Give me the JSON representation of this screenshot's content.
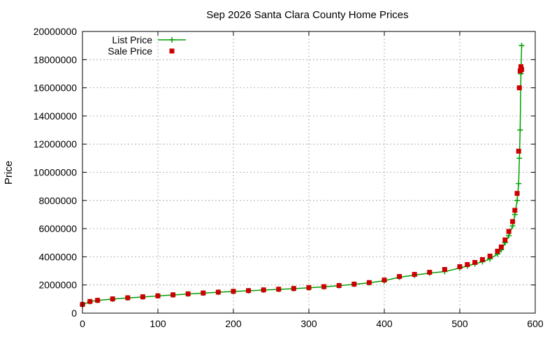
{
  "chart_data": {
    "type": "line",
    "title": "Sep 2026 Santa Clara County Home Prices",
    "xlabel": "",
    "ylabel": "Price",
    "xlim": [
      0,
      600
    ],
    "ylim": [
      0,
      20000000
    ],
    "xticks": [
      0,
      100,
      200,
      300,
      400,
      500,
      600
    ],
    "yticks": [
      0,
      2000000,
      4000000,
      6000000,
      8000000,
      10000000,
      12000000,
      14000000,
      16000000,
      18000000,
      20000000
    ],
    "grid": true,
    "legend": {
      "placement": "top-left"
    },
    "series": [
      {
        "name": "List Price",
        "style": "linespoints",
        "marker": "plus",
        "color": "#00a000",
        "x": [
          0,
          10,
          20,
          40,
          60,
          80,
          100,
          120,
          140,
          160,
          180,
          200,
          220,
          240,
          260,
          280,
          300,
          320,
          340,
          360,
          380,
          400,
          420,
          440,
          460,
          480,
          500,
          510,
          520,
          530,
          540,
          550,
          555,
          560,
          565,
          570,
          573,
          576,
          578,
          579,
          580,
          581,
          582
        ],
        "y": [
          600000,
          820000,
          900000,
          1000000,
          1080000,
          1150000,
          1220000,
          1290000,
          1360000,
          1420000,
          1480000,
          1540000,
          1590000,
          1640000,
          1690000,
          1740000,
          1800000,
          1870000,
          1950000,
          2050000,
          2150000,
          2300000,
          2550000,
          2700000,
          2850000,
          2950000,
          3200000,
          3350000,
          3500000,
          3650000,
          3850000,
          4200000,
          4500000,
          5000000,
          5500000,
          6200000,
          7000000,
          8000000,
          9200000,
          11000000,
          13000000,
          17000000,
          19000000
        ]
      },
      {
        "name": "Sale Price",
        "style": "points",
        "marker": "square",
        "color": "#cc0000",
        "x": [
          0,
          10,
          20,
          40,
          60,
          80,
          100,
          120,
          140,
          160,
          180,
          200,
          220,
          240,
          260,
          280,
          300,
          320,
          340,
          360,
          380,
          400,
          420,
          440,
          460,
          480,
          500,
          510,
          520,
          530,
          540,
          550,
          555,
          560,
          565,
          570,
          573,
          576,
          578,
          579,
          580,
          581,
          582
        ],
        "y": [
          620000,
          830000,
          910000,
          1010000,
          1090000,
          1160000,
          1230000,
          1300000,
          1370000,
          1430000,
          1490000,
          1550000,
          1600000,
          1650000,
          1700000,
          1750000,
          1810000,
          1880000,
          1960000,
          2060000,
          2170000,
          2350000,
          2600000,
          2750000,
          2900000,
          3100000,
          3300000,
          3450000,
          3600000,
          3800000,
          4050000,
          4400000,
          4700000,
          5200000,
          5800000,
          6500000,
          7300000,
          8500000,
          11500000,
          16000000,
          17200000,
          17500000,
          17300000
        ]
      }
    ]
  }
}
